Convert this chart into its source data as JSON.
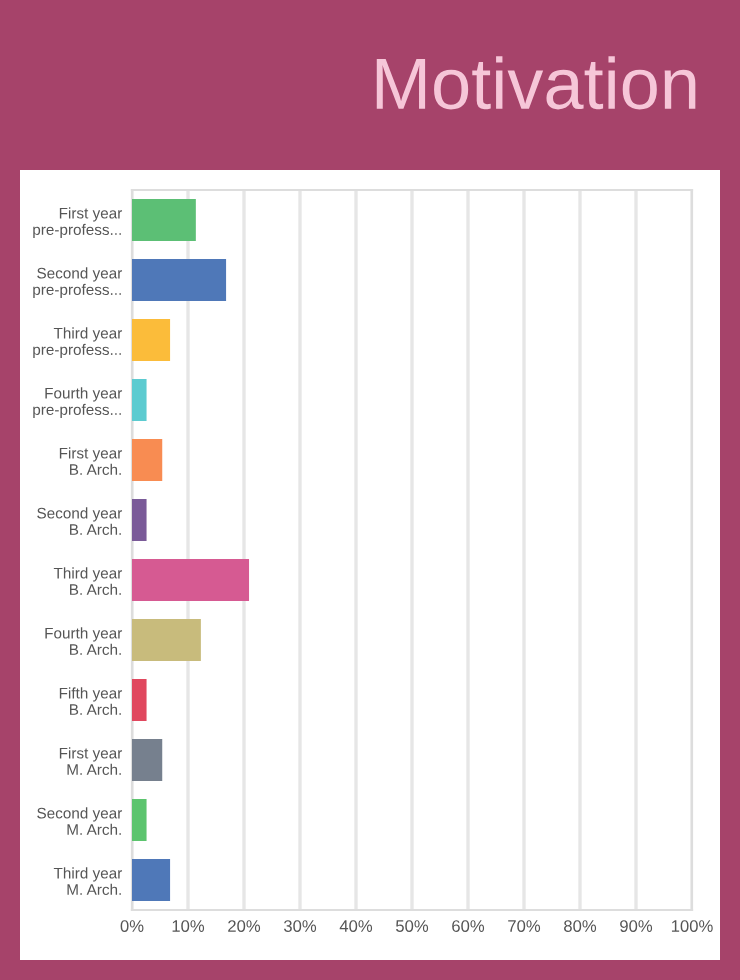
{
  "chart_data": {
    "type": "bar",
    "orientation": "horizontal",
    "title": "Motivation",
    "categories": [
      "First year pre-profess...",
      "Second year pre-profess...",
      "Third year pre-profess...",
      "Fourth year pre-profess...",
      "First year B. Arch.",
      "Second year B. Arch.",
      "Third year B. Arch.",
      "Fourth year B. Arch.",
      "Fifth year B. Arch.",
      "First year M. Arch.",
      "Second year M. Arch.",
      "Third year M. Arch."
    ],
    "values": [
      11.4,
      16.8,
      6.8,
      2.6,
      5.4,
      2.6,
      20.9,
      12.3,
      2.6,
      5.4,
      2.6,
      6.8
    ],
    "colors": [
      "#5cbf75",
      "#4f78b8",
      "#fbbc3a",
      "#5ccbd0",
      "#f88c52",
      "#7a5a98",
      "#d65a92",
      "#c8bb7c",
      "#e0475e",
      "#76808e",
      "#5cc46e",
      "#4f78b8"
    ],
    "xlim": [
      0,
      100
    ],
    "xticks": [
      {
        "value": 0,
        "label": "0%"
      },
      {
        "value": 10,
        "label": "10%"
      },
      {
        "value": 20,
        "label": "20%"
      },
      {
        "value": 30,
        "label": "30%"
      },
      {
        "value": 40,
        "label": "40%"
      },
      {
        "value": 50,
        "label": "50%"
      },
      {
        "value": 60,
        "label": "60%"
      },
      {
        "value": 70,
        "label": "70%"
      },
      {
        "value": 80,
        "label": "80%"
      },
      {
        "value": 90,
        "label": "90%"
      },
      {
        "value": 100,
        "label": "100%"
      }
    ],
    "grid": "x"
  }
}
